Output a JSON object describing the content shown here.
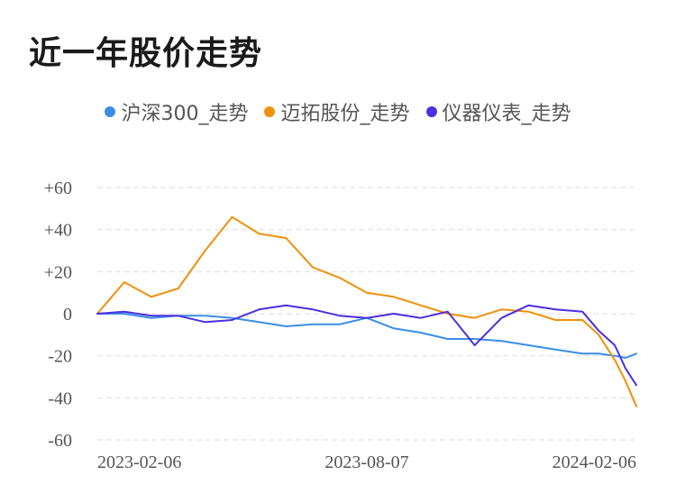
{
  "title": "近一年股价走势",
  "chart_data": {
    "type": "line",
    "title": "近一年股价走势",
    "xlabel": "",
    "ylabel": "",
    "ylim": [
      -60,
      60
    ],
    "yticks": [
      "+60",
      "+40",
      "+20",
      "0",
      "-20",
      "-40",
      "-60"
    ],
    "ytick_values": [
      60,
      40,
      20,
      0,
      -20,
      -40,
      -60
    ],
    "xtick_labels": [
      "2023-02-06",
      "2023-08-07",
      "2024-02-06"
    ],
    "xtick_positions": [
      0,
      0.5,
      1.0
    ],
    "x": [
      0,
      0.05,
      0.1,
      0.15,
      0.2,
      0.25,
      0.3,
      0.35,
      0.4,
      0.45,
      0.5,
      0.55,
      0.6,
      0.65,
      0.7,
      0.75,
      0.8,
      0.85,
      0.9,
      0.93,
      0.96,
      0.98,
      1.0
    ],
    "series": [
      {
        "name": "沪深300_走势",
        "color": "#3a8ee6",
        "values": [
          0,
          0,
          -2,
          -1,
          -1,
          -2,
          -4,
          -6,
          -5,
          -5,
          -2,
          -7,
          -9,
          -12,
          -12,
          -13,
          -15,
          -17,
          -19,
          -19,
          -20,
          -21,
          -19
        ]
      },
      {
        "name": "迈拓股份_走势",
        "color": "#f0900a",
        "values": [
          0,
          15,
          8,
          12,
          30,
          46,
          38,
          36,
          22,
          17,
          10,
          8,
          4,
          0,
          -2,
          2,
          1,
          -3,
          -3,
          -10,
          -22,
          -32,
          -44
        ]
      },
      {
        "name": "仪器仪表_走势",
        "color": "#4e2ee0",
        "values": [
          0,
          1,
          -1,
          -1,
          -4,
          -3,
          2,
          4,
          2,
          -1,
          -2,
          0,
          -2,
          1,
          -15,
          -2,
          4,
          2,
          1,
          -8,
          -15,
          -26,
          -34
        ]
      }
    ]
  }
}
